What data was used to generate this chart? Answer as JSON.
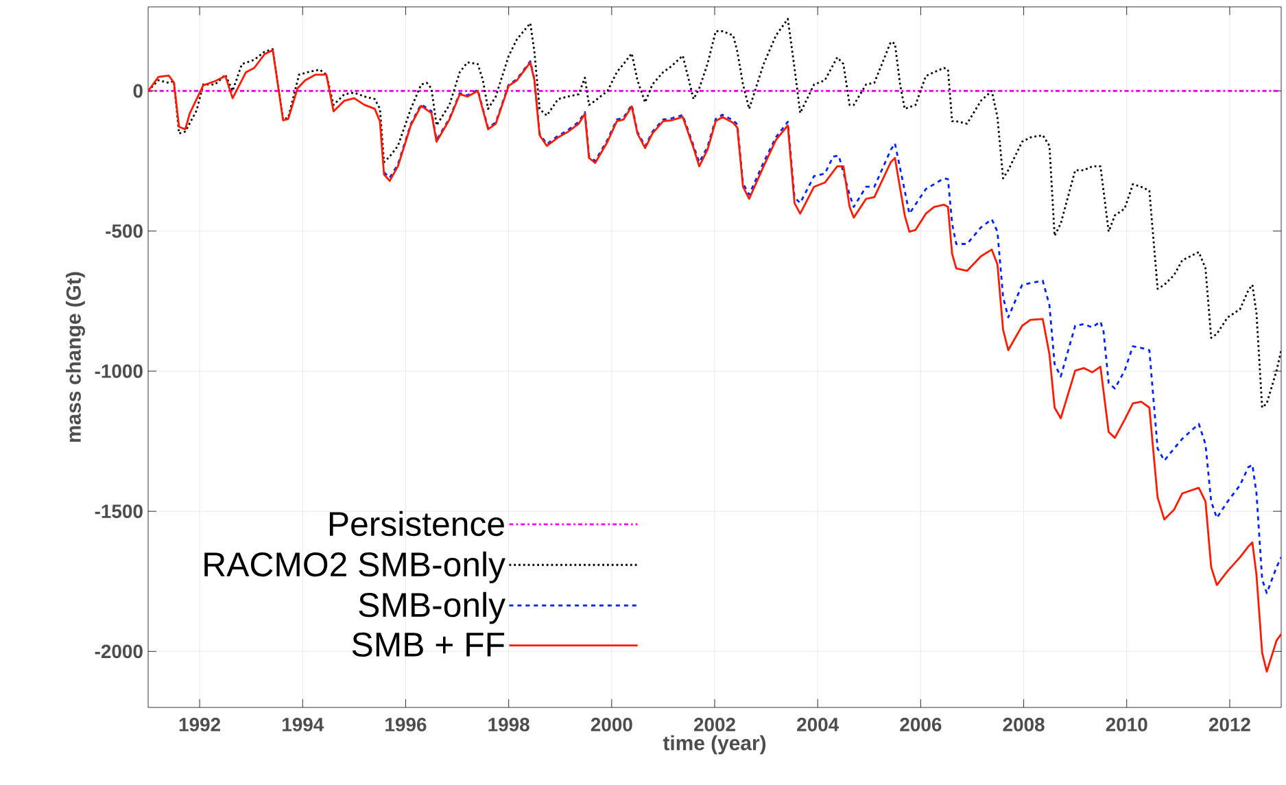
{
  "chart_data": {
    "type": "line",
    "xlabel": "time (year)",
    "ylabel": "mass change (Gt)",
    "xlim": [
      1991,
      2013
    ],
    "ylim": [
      -2200,
      300
    ],
    "xticks": [
      1992,
      1994,
      1996,
      1998,
      2000,
      2002,
      2004,
      2006,
      2008,
      2010,
      2012
    ],
    "yticks": [
      -2000,
      -1500,
      -1000,
      -500,
      0
    ],
    "grid": true,
    "legend": "bottom left",
    "series": [
      {
        "name": "Persistence",
        "color": "#ff00ff",
        "line_style": "dashdot",
        "x": [
          1991,
          2013
        ],
        "values": [
          0,
          0
        ]
      },
      {
        "name": "RACMO2 SMB-only",
        "color": "#000000",
        "line_style": "dotted",
        "x": [
          1991.0,
          1991.2,
          1991.4,
          1991.5,
          1991.6,
          1991.72,
          1991.94,
          1992.07,
          1992.3,
          1992.5,
          1992.64,
          1992.82,
          1993.06,
          1993.26,
          1993.42,
          1993.62,
          1993.72,
          1993.93,
          1994.1,
          1994.33,
          1994.46,
          1994.6,
          1994.81,
          1995.0,
          1995.2,
          1995.4,
          1995.5,
          1995.58,
          1995.69,
          1995.85,
          1996.1,
          1996.3,
          1996.41,
          1996.5,
          1996.6,
          1996.85,
          1997.05,
          1997.2,
          1997.4,
          1997.5,
          1997.6,
          1997.75,
          1998.0,
          1998.16,
          1998.42,
          1998.5,
          1998.6,
          1998.74,
          1998.96,
          1999.15,
          1999.36,
          1999.48,
          1999.56,
          1999.68,
          1999.92,
          2000.1,
          2000.23,
          2000.39,
          2000.5,
          2000.65,
          2000.79,
          2001.0,
          2001.16,
          2001.38,
          2001.59,
          2001.7,
          2001.86,
          2002.02,
          2002.15,
          2002.36,
          2002.44,
          2002.55,
          2002.67,
          2002.95,
          2003.19,
          2003.42,
          2003.55,
          2003.66,
          2003.93,
          2004.14,
          2004.38,
          2004.5,
          2004.62,
          2004.7,
          2004.94,
          2005.1,
          2005.42,
          2005.5,
          2005.6,
          2005.69,
          2005.78,
          2005.9,
          2006.1,
          2006.26,
          2006.45,
          2006.53,
          2006.61,
          2006.69,
          2006.9,
          2007.17,
          2007.38,
          2007.49,
          2007.6,
          2007.7,
          2007.97,
          2008.13,
          2008.37,
          2008.5,
          2008.6,
          2008.72,
          2009.0,
          2009.17,
          2009.33,
          2009.49,
          2009.65,
          2009.77,
          2009.96,
          2010.12,
          2010.28,
          2010.44,
          2010.6,
          2010.73,
          2010.92,
          2011.08,
          2011.4,
          2011.53,
          2011.64,
          2011.75,
          2011.96,
          2012.2,
          2012.36,
          2012.44,
          2012.52,
          2012.63,
          2012.72,
          2012.91,
          2013.0
        ],
        "values": [
          0,
          38,
          29,
          35,
          -152,
          -145,
          -70,
          23,
          23,
          58,
          0,
          96,
          111,
          140,
          149,
          -102,
          -95,
          58,
          67,
          76,
          58,
          -50,
          -12,
          -6,
          -20,
          -29,
          -64,
          -254,
          -234,
          -196,
          -64,
          23,
          29,
          9,
          -123,
          -50,
          67,
          102,
          96,
          38,
          -64,
          -20,
          125,
          184,
          242,
          140,
          -64,
          -88,
          -29,
          -20,
          -12,
          47,
          -50,
          -35,
          0,
          67,
          96,
          134,
          38,
          -41,
          23,
          67,
          88,
          126,
          -29,
          9,
          96,
          213,
          213,
          198,
          140,
          23,
          -64,
          96,
          198,
          257,
          82,
          -79,
          23,
          38,
          120,
          96,
          -50,
          -50,
          23,
          29,
          175,
          169,
          23,
          -64,
          -58,
          -50,
          53,
          67,
          82,
          76,
          -108,
          -108,
          -117,
          -35,
          0,
          -93,
          -312,
          -283,
          -181,
          -166,
          -158,
          -196,
          -517,
          -473,
          -283,
          -283,
          -269,
          -269,
          -502,
          -444,
          -420,
          -333,
          -342,
          -356,
          -706,
          -692,
          -657,
          -604,
          -575,
          -633,
          -881,
          -867,
          -808,
          -779,
          -712,
          -692,
          -794,
          -1130,
          -1115,
          -998,
          -925
        ]
      },
      {
        "name": "SMB-only",
        "color": "#0022ff",
        "line_style": "dashed",
        "x": [
          1995.58,
          1995.69,
          1995.85,
          1996.1,
          1996.3,
          1996.5,
          1996.6,
          1996.85,
          1997.05,
          1997.2,
          1997.4,
          1997.6,
          1997.75,
          1998.0,
          1998.16,
          1998.42,
          1998.5,
          1998.6,
          1998.74,
          1998.96,
          1999.15,
          1999.36,
          1999.48,
          1999.56,
          1999.68,
          1999.92,
          2000.1,
          2000.23,
          2000.39,
          2000.5,
          2000.65,
          2000.79,
          2001.0,
          2001.16,
          2001.38,
          2001.59,
          2001.7,
          2001.86,
          2002.02,
          2002.15,
          2002.36,
          2002.44,
          2002.55,
          2002.67,
          2002.95,
          2003.19,
          2003.42,
          2003.55,
          2003.66,
          2003.93,
          2004.14,
          2004.3,
          2004.41,
          2004.62,
          2004.7,
          2004.94,
          2005.1,
          2005.42,
          2005.5,
          2005.69,
          2005.78,
          2006.1,
          2006.26,
          2006.45,
          2006.53,
          2006.61,
          2006.69,
          2006.9,
          2007.17,
          2007.38,
          2007.49,
          2007.6,
          2007.7,
          2007.97,
          2008.13,
          2008.37,
          2008.5,
          2008.6,
          2008.72,
          2009.0,
          2009.17,
          2009.33,
          2009.49,
          2009.55,
          2009.65,
          2009.77,
          2009.96,
          2010.12,
          2010.28,
          2010.44,
          2010.6,
          2010.73,
          2010.92,
          2011.08,
          2011.4,
          2011.53,
          2011.64,
          2011.75,
          2011.96,
          2012.2,
          2012.36,
          2012.44,
          2012.52,
          2012.63,
          2012.72,
          2012.91,
          2013.0
        ],
        "values": [
          -290,
          -310,
          -262,
          -118,
          -48,
          -72,
          -175,
          -98,
          -8,
          -16,
          4,
          -132,
          -112,
          22,
          42,
          106,
          42,
          -152,
          -190,
          -160,
          -140,
          -110,
          -76,
          -232,
          -250,
          -174,
          -102,
          -96,
          -50,
          -146,
          -198,
          -146,
          -102,
          -98,
          -86,
          -196,
          -255,
          -200,
          -100,
          -85,
          -105,
          -120,
          -330,
          -370,
          -255,
          -165,
          -110,
          -380,
          -400,
          -304,
          -295,
          -234,
          -231,
          -371,
          -414,
          -342,
          -342,
          -210,
          -187,
          -356,
          -438,
          -350,
          -333,
          -312,
          -315,
          -473,
          -546,
          -546,
          -487,
          -458,
          -502,
          -736,
          -808,
          -692,
          -686,
          -677,
          -765,
          -975,
          -1019,
          -838,
          -832,
          -844,
          -823,
          -858,
          -1042,
          -1062,
          -998,
          -911,
          -917,
          -925,
          -1276,
          -1319,
          -1276,
          -1241,
          -1188,
          -1261,
          -1465,
          -1524,
          -1465,
          -1407,
          -1343,
          -1334,
          -1436,
          -1743,
          -1792,
          -1699,
          -1664
        ]
      },
      {
        "name": "SMB + FF",
        "color": "#ff1a00",
        "line_style": "solid",
        "x": [
          1991.0,
          1991.2,
          1991.4,
          1991.5,
          1991.6,
          1991.72,
          1991.81,
          1992.07,
          1992.3,
          1992.5,
          1992.64,
          1992.9,
          1993.06,
          1993.26,
          1993.42,
          1993.62,
          1993.72,
          1993.9,
          1994.05,
          1994.25,
          1994.46,
          1994.6,
          1994.81,
          1995.0,
          1995.2,
          1995.4,
          1995.5,
          1995.58,
          1995.69,
          1995.85,
          1996.1,
          1996.3,
          1996.5,
          1996.6,
          1996.85,
          1997.05,
          1997.2,
          1997.4,
          1997.6,
          1997.75,
          1998.0,
          1998.16,
          1998.42,
          1998.5,
          1998.6,
          1998.74,
          1998.96,
          1999.15,
          1999.36,
          1999.48,
          1999.56,
          1999.68,
          1999.92,
          2000.1,
          2000.23,
          2000.39,
          2000.5,
          2000.65,
          2000.79,
          2001.0,
          2001.16,
          2001.38,
          2001.59,
          2001.7,
          2001.86,
          2002.02,
          2002.15,
          2002.36,
          2002.44,
          2002.55,
          2002.67,
          2002.95,
          2003.19,
          2003.42,
          2003.55,
          2003.66,
          2003.93,
          2004.14,
          2004.38,
          2004.5,
          2004.62,
          2004.7,
          2004.94,
          2005.1,
          2005.42,
          2005.5,
          2005.69,
          2005.78,
          2005.9,
          2006.1,
          2006.26,
          2006.45,
          2006.53,
          2006.61,
          2006.69,
          2006.9,
          2007.17,
          2007.38,
          2007.49,
          2007.6,
          2007.7,
          2007.97,
          2008.13,
          2008.37,
          2008.5,
          2008.6,
          2008.72,
          2009.0,
          2009.17,
          2009.33,
          2009.49,
          2009.65,
          2009.77,
          2009.96,
          2010.12,
          2010.28,
          2010.44,
          2010.6,
          2010.73,
          2010.92,
          2011.08,
          2011.4,
          2011.53,
          2011.64,
          2011.75,
          2011.96,
          2012.2,
          2012.36,
          2012.44,
          2012.52,
          2012.63,
          2012.72,
          2012.91,
          2013.0
        ],
        "values": [
          0,
          50,
          55,
          30,
          -128,
          -137,
          -79,
          20,
          35,
          53,
          -26,
          67,
          82,
          131,
          146,
          -105,
          -100,
          9,
          38,
          58,
          58,
          -73,
          -35,
          -26,
          -50,
          -64,
          -108,
          -298,
          -321,
          -269,
          -123,
          -53,
          -79,
          -181,
          -102,
          -12,
          -20,
          0,
          -137,
          -117,
          18,
          38,
          102,
          38,
          -158,
          -196,
          -166,
          -146,
          -117,
          -82,
          -239,
          -257,
          -181,
          -108,
          -102,
          -55,
          -152,
          -204,
          -152,
          -108,
          -105,
          -93,
          -204,
          -269,
          -210,
          -108,
          -93,
          -114,
          -131,
          -342,
          -385,
          -269,
          -175,
          -123,
          -400,
          -438,
          -342,
          -327,
          -269,
          -269,
          -414,
          -452,
          -385,
          -379,
          -254,
          -239,
          -444,
          -502,
          -496,
          -438,
          -414,
          -406,
          -414,
          -581,
          -633,
          -642,
          -590,
          -566,
          -619,
          -852,
          -925,
          -838,
          -817,
          -814,
          -940,
          -1130,
          -1168,
          -998,
          -989,
          -1004,
          -984,
          -1217,
          -1238,
          -1173,
          -1115,
          -1109,
          -1130,
          -1451,
          -1529,
          -1494,
          -1436,
          -1416,
          -1465,
          -1699,
          -1763,
          -1713,
          -1664,
          -1626,
          -1611,
          -1728,
          -2005,
          -2072,
          -1961,
          -1938
        ]
      }
    ]
  }
}
